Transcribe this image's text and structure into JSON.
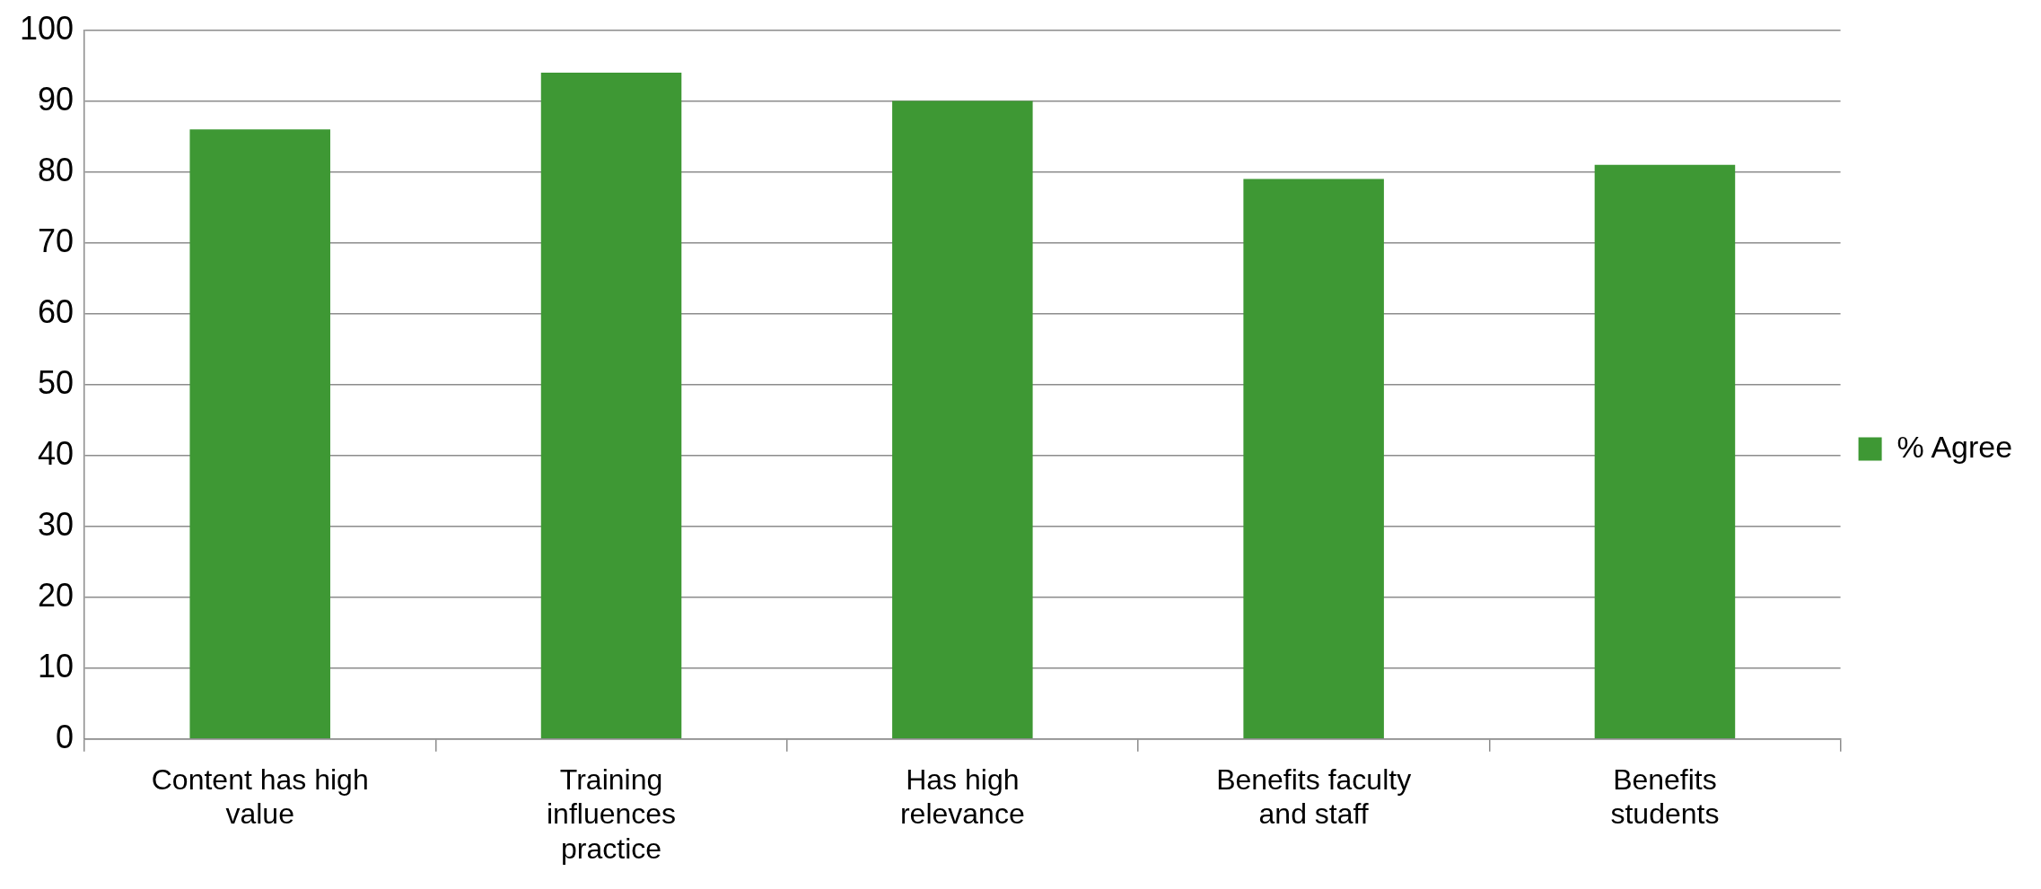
{
  "chart_data": {
    "type": "bar",
    "categories": [
      "Content has high value",
      "Training influences practice",
      "Has high relevance",
      "Benefits faculty and staff",
      "Benefits students"
    ],
    "series": [
      {
        "name": "% Agree",
        "color": "#3e9834",
        "values": [
          86,
          94,
          90,
          79,
          81
        ]
      }
    ],
    "ylim": [
      0,
      100
    ],
    "yticks": [
      0,
      10,
      20,
      30,
      40,
      50,
      60,
      70,
      80,
      90,
      100
    ],
    "grid": "y",
    "legend": "right"
  }
}
